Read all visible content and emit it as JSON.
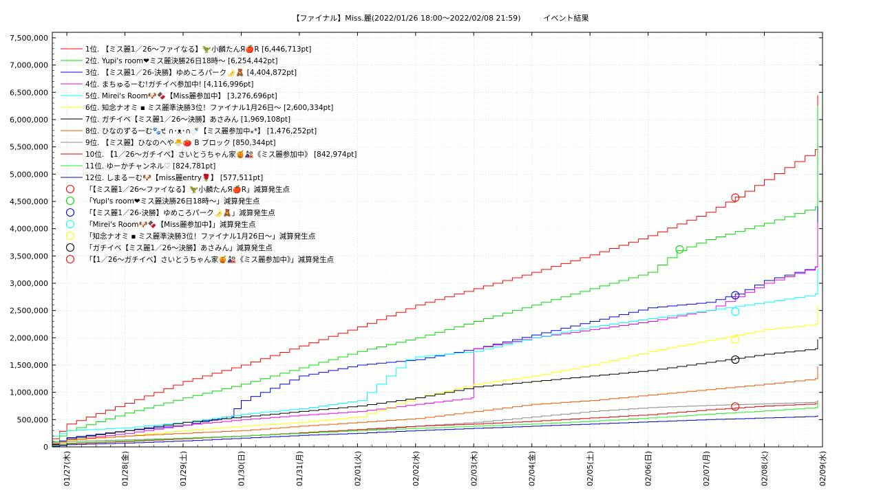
{
  "chart_data": {
    "type": "line",
    "title": "【ファイナル】Miss.麗(2022/01/26 18:00～2022/02/08 21:59)　　　イベント結果",
    "xlabel": "",
    "ylabel": "",
    "x_ticks": [
      "01/27(木)",
      "01/28(金)",
      "01/29(土)",
      "01/30(日)",
      "01/31(月)",
      "02/01(火)",
      "02/02(水)",
      "02/03(木)",
      "02/04(金)",
      "02/05(土)",
      "02/06(日)",
      "02/07(月)",
      "02/08(火)",
      "02/09(水)"
    ],
    "y_ticks": [
      "0",
      "500,000",
      "1,000,000",
      "1,500,000",
      "2,000,000",
      "2,500,000",
      "3,000,000",
      "3,500,000",
      "4,000,000",
      "4,500,000",
      "5,000,000",
      "5,500,000",
      "6,000,000",
      "6,500,000",
      "7,000,000",
      "7,500,000"
    ],
    "xlim": [
      "2022/01/26 18:00",
      "2022/02/09 00:00"
    ],
    "ylim": [
      0,
      7600000
    ],
    "grid": true,
    "legend_position": "top-left",
    "series": [
      {
        "name": "1位. 【ミス麗1／26〜ファイなる】🦖小麟たんЯ🍎R [6,446,713pt]",
        "color": "#ff0000",
        "x": [
          "01/26 18:00",
          "01/27 00:00",
          "01/28 00:00",
          "01/29 00:00",
          "01/30 00:00",
          "01/31 00:00",
          "02/01 00:00",
          "02/02 00:00",
          "02/03 00:00",
          "02/04 00:00",
          "02/05 00:00",
          "02/06 00:00",
          "02/07 00:00",
          "02/07 12:00",
          "02/08 00:00",
          "02/08 21:00",
          "02/08 22:00"
        ],
        "y": [
          150000,
          420000,
          800000,
          1200000,
          1500000,
          1850000,
          2200000,
          2600000,
          2900000,
          3200000,
          3520000,
          3870000,
          4300000,
          4580000,
          4900000,
          5450000,
          6446713
        ]
      },
      {
        "name": "2位. Yupi's room❤ミス麗決勝26日18時〜 [6,254,442pt]",
        "color": "#00dd00",
        "x": [
          "01/26 18:00",
          "01/27 00:00",
          "01/28 00:00",
          "01/29 00:00",
          "01/30 00:00",
          "01/31 00:00",
          "02/01 00:00",
          "02/02 00:00",
          "02/03 00:00",
          "02/04 00:00",
          "02/05 00:00",
          "02/06 00:00",
          "02/06 12:00",
          "02/07 00:00",
          "02/08 00:00",
          "02/08 21:00",
          "02/08 22:00"
        ],
        "y": [
          100000,
          300000,
          620000,
          900000,
          1150000,
          1450000,
          1750000,
          2000000,
          2300000,
          2600000,
          2900000,
          3200000,
          3600000,
          3800000,
          4100000,
          4400000,
          6254442
        ]
      },
      {
        "name": "3位. 【ミス麗1／26-決勝】ゆめころパーク🌛🧸 [4,404,872pt]",
        "color": "#0000ee",
        "x": [
          "01/26 18:00",
          "01/27 00:00",
          "01/28 00:00",
          "01/29 00:00",
          "01/29 18:00",
          "01/30 00:00",
          "01/31 00:00",
          "02/01 00:00",
          "02/02 00:00",
          "02/03 00:00",
          "02/04 00:00",
          "02/05 00:00",
          "02/06 00:00",
          "02/07 00:00",
          "02/07 12:00",
          "02/08 00:00",
          "02/08 21:00",
          "02/08 22:00"
        ],
        "y": [
          50000,
          170000,
          300000,
          400000,
          550000,
          850000,
          1300000,
          1500000,
          1600000,
          1800000,
          2050000,
          2300000,
          2550000,
          2650000,
          2800000,
          3050000,
          3300000,
          4404872
        ]
      },
      {
        "name": "4位. まちゅるーむ!ガチイベ参加中! [4,116,996pt]",
        "color": "#ee00ee",
        "x": [
          "01/26 18:00",
          "01/27 00:00",
          "01/28 00:00",
          "01/29 00:00",
          "01/30 00:00",
          "01/31 00:00",
          "02/01 00:00",
          "02/02 00:00",
          "02/02 23:00",
          "02/03 00:00",
          "02/04 00:00",
          "02/05 00:00",
          "02/06 00:00",
          "02/07 00:00",
          "02/08 00:00",
          "02/08 21:00",
          "02/08 22:00"
        ],
        "y": [
          20000,
          120000,
          250000,
          400000,
          500000,
          580000,
          650000,
          780000,
          900000,
          1800000,
          2000000,
          2150000,
          2300000,
          2500000,
          3000000,
          3300000,
          4116996
        ]
      },
      {
        "name": "5位. Mirei's Room🐶🍫【Miss麗参加中】 [3,276,696pt]",
        "color": "#00ffff",
        "x": [
          "01/26 18:00",
          "01/27 00:00",
          "01/28 00:00",
          "01/29 00:00",
          "01/30 00:00",
          "01/31 00:00",
          "02/01 00:00",
          "02/01 20:00",
          "02/02 00:00",
          "02/03 00:00",
          "02/04 00:00",
          "02/05 00:00",
          "02/06 00:00",
          "02/07 00:00",
          "02/08 00:00",
          "02/08 21:00",
          "02/08 22:00"
        ],
        "y": [
          200000,
          300000,
          350000,
          450000,
          600000,
          700000,
          850000,
          1600000,
          1650000,
          1750000,
          2000000,
          2200000,
          2350000,
          2500000,
          2650000,
          2800000,
          3276696
        ]
      },
      {
        "name": "6位. 知念ナオミ ▪ ミス麗準決勝3位！ファイナル1月26日〜 [2,600,334pt]",
        "color": "#ffff00",
        "x": [
          "01/26 18:00",
          "01/27 00:00",
          "01/28 00:00",
          "01/29 00:00",
          "01/30 00:00",
          "01/31 00:00",
          "02/01 00:00",
          "02/02 00:00",
          "02/03 00:00",
          "02/04 00:00",
          "02/05 00:00",
          "02/06 00:00",
          "02/07 00:00",
          "02/08 00:00",
          "02/08 21:00",
          "02/08 22:00"
        ],
        "y": [
          30000,
          120000,
          200000,
          300000,
          380000,
          450000,
          550000,
          900000,
          1150000,
          1300000,
          1500000,
          1750000,
          1950000,
          2150000,
          2250000,
          2600334
        ]
      },
      {
        "name": "7位. ガチイベ【ミス麗1／26〜決勝】あさみん [1,969,108pt]",
        "color": "#000000",
        "x": [
          "01/26 18:00",
          "01/27 00:00",
          "01/28 00:00",
          "01/29 00:00",
          "01/30 00:00",
          "01/31 00:00",
          "02/01 00:00",
          "02/02 00:00",
          "02/03 00:00",
          "02/04 00:00",
          "02/05 00:00",
          "02/06 00:00",
          "02/07 00:00",
          "02/08 00:00",
          "02/08 21:00",
          "02/08 22:00"
        ],
        "y": [
          40000,
          150000,
          300000,
          450000,
          550000,
          650000,
          750000,
          900000,
          1100000,
          1200000,
          1300000,
          1400000,
          1550000,
          1700000,
          1800000,
          1969108
        ]
      },
      {
        "name": "8位. ひなのずる一む🐾੯ ∩･ᴥ･∩🍼【ミス麗参加中⁎*】 [1,476,252pt]",
        "color": "#ee5500",
        "x": [
          "01/26 18:00",
          "01/27 00:00",
          "01/28 00:00",
          "01/29 00:00",
          "01/30 00:00",
          "01/31 00:00",
          "02/01 00:00",
          "02/02 00:00",
          "02/03 00:00",
          "02/04 00:00",
          "02/05 00:00",
          "02/06 00:00",
          "02/07 00:00",
          "02/08 00:00",
          "02/08 21:00",
          "02/08 22:00"
        ],
        "y": [
          60000,
          130000,
          200000,
          250000,
          300000,
          380000,
          450000,
          520000,
          650000,
          780000,
          850000,
          950000,
          1050000,
          1150000,
          1250000,
          1476252
        ]
      },
      {
        "name": "9位. 【ミス麗】ひなのへや🐣🍅 B ブロック [850,344pt]",
        "color": "#888888",
        "x": [
          "01/26 18:00",
          "01/27 00:00",
          "01/28 00:00",
          "01/29 00:00",
          "01/30 00:00",
          "01/31 00:00",
          "02/01 00:00",
          "02/02 00:00",
          "02/03 00:00",
          "02/04 00:00",
          "02/05 00:00",
          "02/06 00:00",
          "02/07 00:00",
          "02/08 00:00",
          "02/08 21:00",
          "02/08 22:00"
        ],
        "y": [
          80000,
          100000,
          130000,
          160000,
          200000,
          250000,
          300000,
          380000,
          450000,
          550000,
          650000,
          720000,
          760000,
          790000,
          820000,
          850344
        ]
      },
      {
        "name": "10位. 【1／26〜ガチイベ】さいとうちゃん家🍯🎎《ミス麗参加中》 [842,974pt]",
        "color": "#dd0000",
        "x": [
          "01/26 18:00",
          "01/27 00:00",
          "01/28 00:00",
          "01/29 00:00",
          "01/30 00:00",
          "01/31 00:00",
          "02/01 00:00",
          "02/02 00:00",
          "02/03 00:00",
          "02/04 00:00",
          "02/05 00:00",
          "02/06 00:00",
          "02/07 00:00",
          "02/08 00:00",
          "02/08 21:00",
          "02/08 22:00"
        ],
        "y": [
          10000,
          60000,
          100000,
          150000,
          200000,
          260000,
          320000,
          380000,
          420000,
          470000,
          530000,
          590000,
          680000,
          750000,
          790000,
          842974
        ]
      },
      {
        "name": "11位. ゆーかチャンネル♡ [824,781pt]",
        "color": "#22ee22",
        "x": [
          "01/26 18:00",
          "01/27 00:00",
          "01/28 00:00",
          "01/29 00:00",
          "01/30 00:00",
          "01/31 00:00",
          "02/01 00:00",
          "02/02 00:00",
          "02/03 00:00",
          "02/04 00:00",
          "02/05 00:00",
          "02/06 00:00",
          "02/07 00:00",
          "02/08 00:00",
          "02/08 21:00",
          "02/08 22:00"
        ],
        "y": [
          20000,
          70000,
          110000,
          160000,
          200000,
          250000,
          300000,
          340000,
          380000,
          420000,
          470000,
          530000,
          600000,
          660000,
          720000,
          824781
        ]
      },
      {
        "name": "12位. しまるーむ🐶【miss麗entry🌹】 [577,511pt]",
        "color": "#0000cc",
        "x": [
          "01/26 18:00",
          "01/27 00:00",
          "01/28 00:00",
          "01/29 00:00",
          "01/30 00:00",
          "01/31 00:00",
          "02/01 00:00",
          "02/02 00:00",
          "02/03 00:00",
          "02/04 00:00",
          "02/05 00:00",
          "02/06 00:00",
          "02/07 00:00",
          "02/08 00:00",
          "02/08 21:00",
          "02/08 22:00"
        ],
        "y": [
          10000,
          40000,
          70000,
          110000,
          160000,
          210000,
          250000,
          300000,
          340000,
          380000,
          420000,
          460000,
          500000,
          530000,
          560000,
          577511
        ]
      }
    ],
    "markers": [
      {
        "name": "「【ミス麗1／26〜ファイなる】🦖小麟たんЯ🍎R」減算発生点",
        "color": "#ff0000",
        "x": "02/07 12:00",
        "y": 4570000
      },
      {
        "name": "「Yupi's room❤ミス麗決勝26日18時〜」減算発生点",
        "color": "#00dd00",
        "x": "02/06 13:00",
        "y": 3620000
      },
      {
        "name": "「【ミス麗1／26-決勝】ゆめころパーク🌛🧸」減算発生点",
        "color": "#0000ee",
        "x": "02/07 12:00",
        "y": 2780000
      },
      {
        "name": "「Mirei's Room🐶🍫【Miss麗参加中】」減算発生点",
        "color": "#00ffff",
        "x": "02/07 12:00",
        "y": 2480000
      },
      {
        "name": "「知念ナオミ ▪ ミス麗準決勝3位！ファイナル1月26日〜」減算発生点",
        "color": "#ffff00",
        "x": "02/07 12:00",
        "y": 1970000
      },
      {
        "name": "「ガチイベ【ミス麗1／26〜決勝】あさみん」減算発生点",
        "color": "#000000",
        "x": "02/07 12:00",
        "y": 1600000
      },
      {
        "name": "「【1／26〜ガチイベ】さいとうちゃん家🍯🎎《ミス麗参加中》」減算発生点",
        "color": "#ff0000",
        "x": "02/07 12:00",
        "y": 740000
      }
    ]
  }
}
